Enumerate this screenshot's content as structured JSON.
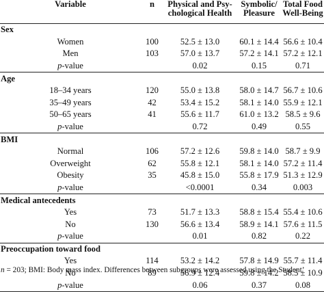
{
  "columns": {
    "variable": "Variable",
    "n": "n",
    "physical_line1": "Physical and Psy-",
    "physical_line2": "chological Health",
    "symbolic_line1": "Symbolic/",
    "symbolic_line2": "Pleasure",
    "total_line1": "Total Food",
    "total_line2": "Well-Being"
  },
  "groups": [
    {
      "name": "Sex",
      "rows": [
        {
          "label": "Women",
          "n": "100",
          "ph": "52.5 ± 13.0",
          "sp": "60.1 ± 14.4",
          "tf": "56.6 ± 10.4"
        },
        {
          "label": "Men",
          "n": "103",
          "ph": "57.0 ± 13.7",
          "sp": "57.2 ± 14.1",
          "tf": "57.2 ± 12.1"
        }
      ],
      "p": {
        "prefix": "p",
        "suffix": "-value",
        "ph": "0.02",
        "sp": "0.15",
        "tf": "0.71"
      }
    },
    {
      "name": "Age",
      "rows": [
        {
          "label": "18–34 years",
          "n": "120",
          "ph": "55.0 ± 13.8",
          "sp": "58.0 ± 14.7",
          "tf": "56.7 ± 10.6"
        },
        {
          "label": "35–49 years",
          "n": "42",
          "ph": "53.4 ± 15.2",
          "sp": "58.1 ± 14.0",
          "tf": "55.9 ± 12.1"
        },
        {
          "label": "50–65 years",
          "n": "41",
          "ph": "55.6 ± 11.7",
          "sp": "61.0 ± 13.2",
          "tf": "58.5 ± 9.6"
        }
      ],
      "p": {
        "prefix": "p",
        "suffix": "-value",
        "ph": "0.72",
        "sp": "0.49",
        "tf": "0.55"
      }
    },
    {
      "name": "BMI",
      "rows": [
        {
          "label": "Normal",
          "n": "106",
          "ph": "57.2 ± 12.6",
          "sp": "59.8 ± 14.0",
          "tf": "58.7 ± 9.9"
        },
        {
          "label": "Overweight",
          "n": "62",
          "ph": "55.8 ± 12.1",
          "sp": "58.1 ± 14.0",
          "tf": "57.2 ± 11.4"
        },
        {
          "label": "Obesity",
          "n": "35",
          "ph": "45.8 ± 15.0",
          "sp": "55.8 ± 17.9",
          "tf": "51.3 ± 12.9"
        }
      ],
      "p": {
        "prefix": "p",
        "suffix": "-value",
        "ph": "<0.0001",
        "sp": "0.34",
        "tf": "0.003"
      }
    },
    {
      "name": "Medical antecedents",
      "rows": [
        {
          "label": "Yes",
          "n": "73",
          "ph": "51.7 ± 13.3",
          "sp": "58.8 ± 15.4",
          "tf": "55.4 ± 10.6"
        },
        {
          "label": "No",
          "n": "130",
          "ph": "56.6 ± 13.4",
          "sp": "58.9 ± 14.1",
          "tf": "57.6 ± 11.5"
        }
      ],
      "p": {
        "prefix": "p",
        "suffix": "-value",
        "ph": "0.01",
        "sp": "0.82",
        "tf": "0.22"
      }
    },
    {
      "name": "Preoccupation toward food",
      "rows": [
        {
          "label": "Yes",
          "n": "114",
          "ph": "53.2 ± 14.2",
          "sp": "57.8 ± 14.9",
          "tf": "55.7 ± 11.4"
        },
        {
          "label": "No",
          "n": "89",
          "ph": "56.9 ± 12.4",
          "sp": "59.8 ± 14.2",
          "tf": "58.5 ± 10.9"
        }
      ],
      "p": {
        "prefix": "p",
        "suffix": "-value",
        "ph": "0.06",
        "sp": "0.37",
        "tf": "0.08"
      }
    }
  ],
  "footnote": {
    "n_italic": "n",
    "text": " = 203; BMI: Body mass index. Differences between subgroups were assessed using the Student’"
  }
}
